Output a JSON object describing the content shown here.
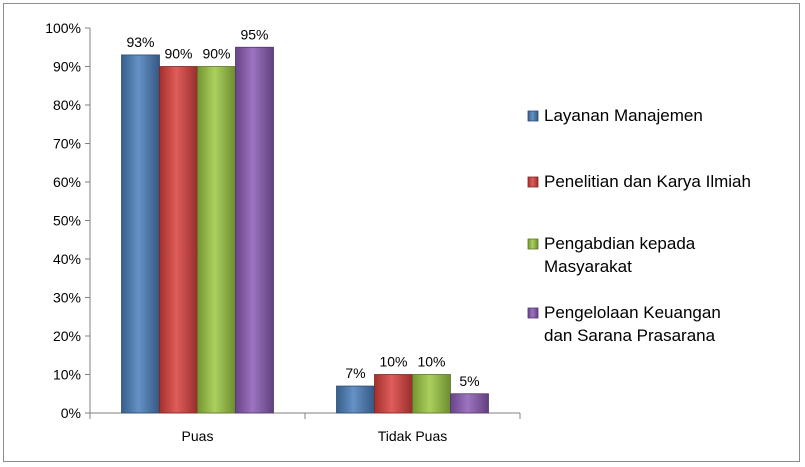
{
  "chart_data": {
    "type": "bar",
    "categories": [
      "Puas",
      "Tidak Puas"
    ],
    "series": [
      {
        "name": "Layanan Manajemen",
        "values": [
          93,
          7
        ],
        "labels": [
          "93%",
          "7%"
        ],
        "color": "#4a7ebb"
      },
      {
        "name": "Penelitian dan Karya Ilmiah",
        "values": [
          90,
          10
        ],
        "labels": [
          "90%",
          "10%"
        ],
        "color": "#d9403d"
      },
      {
        "name": "Pengabdian kepada Masyarakat",
        "values": [
          90,
          10
        ],
        "labels": [
          "90%",
          "10%"
        ],
        "color": "#9bc843"
      },
      {
        "name": "Pengelolaan Keuangan dan Sarana Prasarana",
        "values": [
          95,
          5
        ],
        "labels": [
          "95%",
          "5%"
        ],
        "color": "#8a5bb5"
      }
    ],
    "legend": [
      {
        "lines": [
          "Layanan Manajemen"
        ]
      },
      {
        "lines": [
          "Penelitian dan Karya Ilmiah"
        ]
      },
      {
        "lines": [
          "Pengabdian kepada",
          "Masyarakat"
        ]
      },
      {
        "lines": [
          "Pengelolaan Keuangan",
          "dan Sarana Prasarana"
        ]
      }
    ],
    "yticks": [
      "0%",
      "10%",
      "20%",
      "30%",
      "40%",
      "50%",
      "60%",
      "70%",
      "80%",
      "90%",
      "100%"
    ],
    "ylim": [
      0,
      100
    ],
    "legend_position": "right",
    "grid": false
  }
}
